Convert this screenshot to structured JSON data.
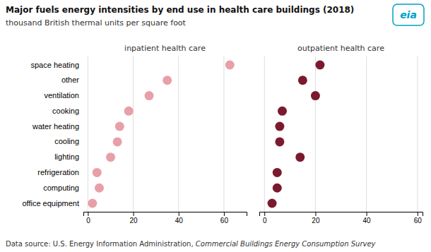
{
  "chart_data": [
    {
      "type": "dot",
      "orientation": "horizontal",
      "title": "Major fuels energy intensities by end use in health care buildings (2018)",
      "subtitle": "thousand British thermal units per square foot",
      "annotations": [
        "Data source: U.S. Energy Information Administration, ",
        "Commercial Buildings Energy Consumption Survey",
        "eia"
      ],
      "categories": [
        "space heating",
        "other",
        "ventilation",
        "cooking",
        "water heating",
        "cooling",
        "lighting",
        "refrigeration",
        "computing",
        "office equipment"
      ],
      "series": [
        {
          "name": "inpatient health care",
          "color": "#e8a0a8",
          "values": [
            62.6,
            35.0,
            27.0,
            18.0,
            14.0,
            13.0,
            10.0,
            4.0,
            5.0,
            2.0
          ]
        }
      ],
      "xlim": [
        -2,
        70
      ],
      "xticks": [
        0,
        20,
        40,
        60
      ],
      "grid": true
    },
    {
      "type": "dot",
      "orientation": "horizontal",
      "categories": [
        "space heating",
        "other",
        "ventilation",
        "cooking",
        "water heating",
        "cooling",
        "lighting",
        "refrigeration",
        "computing",
        "office equipment"
      ],
      "series": [
        {
          "name": "outpatient health care",
          "color": "#7b1a2e",
          "values": [
            21.8,
            15.0,
            20.0,
            7.0,
            6.0,
            6.0,
            14.0,
            5.0,
            5.0,
            3.0
          ]
        }
      ],
      "xlim": [
        -2,
        62
      ],
      "xticks": [
        0,
        20,
        40,
        60
      ],
      "grid": true,
      "tick_labels": "x"
    }
  ]
}
